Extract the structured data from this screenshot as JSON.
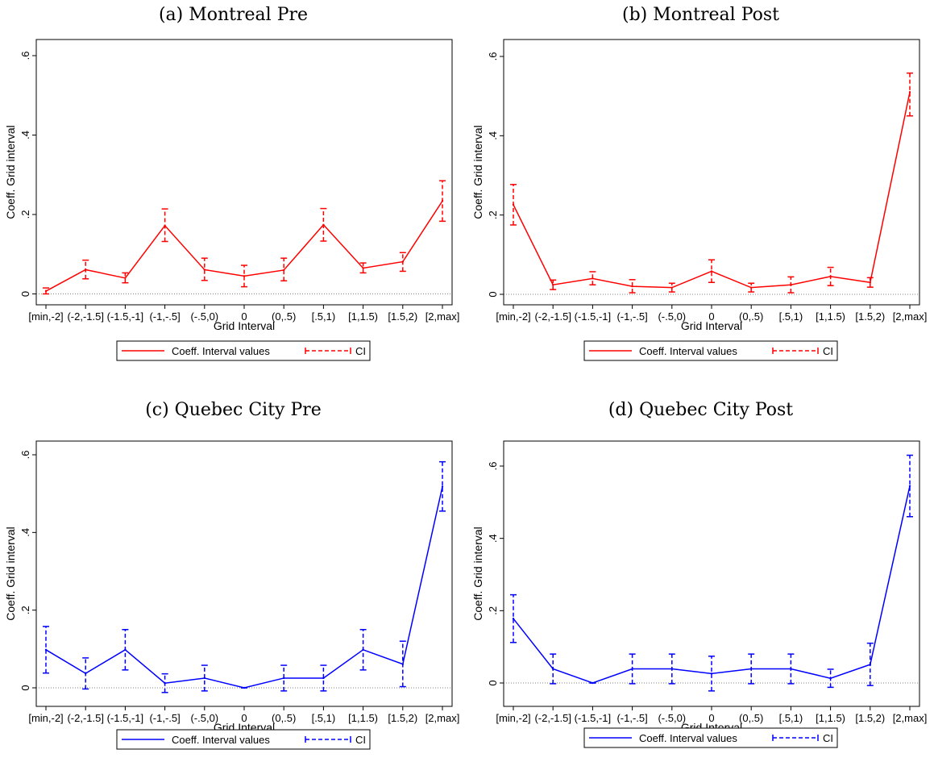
{
  "chart_data": [
    {
      "type": "line",
      "title": "(a) Montreal Pre",
      "xlabel": "Grid Interval",
      "ylabel": "Coeff. Grid interval",
      "categories": [
        "[min,-2]",
        "(-2,-1.5]",
        "(-1.5,-1]",
        "(-1,-.5]",
        "(-.5,0)",
        "0",
        "(0,.5)",
        "[.5,1)",
        "[1,1.5)",
        "[1.5,2)",
        "[2,max]"
      ],
      "ylim": [
        0,
        0.6
      ],
      "yticks": [
        0,
        0.2,
        0.4,
        0.6
      ],
      "ytick_labels": [
        "0",
        ".2",
        ".4",
        ".6"
      ],
      "color": "#ff0000",
      "series": [
        {
          "name": "Coeff. Interval values",
          "values": [
            0.007,
            0.061,
            0.04,
            0.172,
            0.061,
            0.045,
            0.06,
            0.174,
            0.065,
            0.081,
            0.234
          ]
        },
        {
          "name": "CI",
          "lower": [
            0.0,
            0.038,
            0.028,
            0.132,
            0.034,
            0.018,
            0.033,
            0.133,
            0.053,
            0.057,
            0.183
          ],
          "upper": [
            0.015,
            0.085,
            0.053,
            0.214,
            0.09,
            0.072,
            0.09,
            0.215,
            0.078,
            0.104,
            0.285
          ]
        }
      ],
      "legend": {
        "position": "bottom",
        "entries": [
          "Coeff. Interval values",
          "CI"
        ]
      },
      "grid": false
    },
    {
      "type": "line",
      "title": "(b) Montreal Post",
      "xlabel": "Grid Interval",
      "ylabel": "Coeff. Grid interval",
      "categories": [
        "[min,-2]",
        "(-2,-1.5]",
        "(-1.5,-1]",
        "(-1,-.5]",
        "(-.5,0)",
        "0",
        "(0,.5)",
        "[.5,1)",
        "[1,1.5)",
        "[1.5,2)",
        "[2,max]"
      ],
      "ylim": [
        0,
        0.6
      ],
      "yticks": [
        0,
        0.2,
        0.4,
        0.6
      ],
      "ytick_labels": [
        "0",
        ".2",
        ".4",
        ".6"
      ],
      "color": "#ff0000",
      "series": [
        {
          "name": "Coeff. Interval values",
          "values": [
            0.226,
            0.024,
            0.04,
            0.02,
            0.017,
            0.058,
            0.017,
            0.024,
            0.045,
            0.03,
            0.51
          ]
        },
        {
          "name": "CI",
          "lower": [
            0.175,
            0.012,
            0.024,
            0.004,
            0.006,
            0.03,
            0.006,
            0.004,
            0.022,
            0.018,
            0.45
          ],
          "upper": [
            0.277,
            0.036,
            0.057,
            0.037,
            0.028,
            0.087,
            0.028,
            0.044,
            0.068,
            0.042,
            0.558
          ]
        }
      ],
      "legend": {
        "position": "bottom",
        "entries": [
          "Coeff. Interval values",
          "CI"
        ]
      },
      "grid": false
    },
    {
      "type": "line",
      "title": "(c) Quebec City Pre",
      "xlabel": "Grid Interval",
      "ylabel": "Coeff. Grid interval",
      "categories": [
        "[min,-2]",
        "(-2,-1.5]",
        "(-1.5,-1]",
        "(-1,-.5]",
        "(-.5,0)",
        "0",
        "(0,.5)",
        "[.5,1)",
        "[1,1.5)",
        "[1.5,2)",
        "[2,max]"
      ],
      "ylim": [
        0,
        0.6
      ],
      "yticks": [
        0,
        0.2,
        0.4,
        0.6
      ],
      "ytick_labels": [
        "0",
        ".2",
        ".4",
        ".6"
      ],
      "color": "#0000ff",
      "series": [
        {
          "name": "Coeff. Interval values",
          "values": [
            0.098,
            0.037,
            0.098,
            0.012,
            0.025,
            0.0,
            0.025,
            0.025,
            0.098,
            0.061,
            0.518
          ]
        },
        {
          "name": "CI",
          "lower": [
            0.038,
            -0.003,
            0.046,
            -0.012,
            -0.008,
            0.0,
            -0.008,
            -0.008,
            0.046,
            0.003,
            0.455
          ],
          "upper": [
            0.158,
            0.077,
            0.15,
            0.036,
            0.058,
            0.0,
            0.058,
            0.058,
            0.15,
            0.12,
            0.582
          ]
        }
      ],
      "legend": {
        "position": "bottom",
        "entries": [
          "Coeff. Interval values",
          "CI"
        ]
      },
      "grid": false
    },
    {
      "type": "line",
      "title": "(d) Quebec City Post",
      "xlabel": "Grid Interval",
      "ylabel": "Coeff. Grid interval",
      "categories": [
        "[min,-2]",
        "(-2,-1.5]",
        "(-1.5,-1]",
        "(-1,-.5]",
        "(-.5,0)",
        "0",
        "(0,.5)",
        "[.5,1)",
        "[1,1.5)",
        "[1.5,2)",
        "[2,max]"
      ],
      "ylim": [
        0,
        0.6
      ],
      "yticks": [
        0,
        0.2,
        0.4,
        0.6
      ],
      "ytick_labels": [
        "0",
        ".2",
        ".4",
        ".6"
      ],
      "color": "#0000ff",
      "series": [
        {
          "name": "Coeff. Interval values",
          "values": [
            0.178,
            0.039,
            0.0,
            0.039,
            0.039,
            0.026,
            0.039,
            0.039,
            0.013,
            0.051,
            0.545
          ]
        },
        {
          "name": "CI",
          "lower": [
            0.112,
            -0.002,
            0.0,
            -0.002,
            -0.002,
            -0.022,
            -0.002,
            -0.002,
            -0.012,
            -0.007,
            0.46
          ],
          "upper": [
            0.244,
            0.08,
            0.0,
            0.08,
            0.08,
            0.074,
            0.08,
            0.08,
            0.038,
            0.11,
            0.63
          ]
        }
      ],
      "legend": {
        "position": "bottom",
        "entries": [
          "Coeff. Interval values",
          "CI"
        ]
      },
      "grid": false
    }
  ]
}
